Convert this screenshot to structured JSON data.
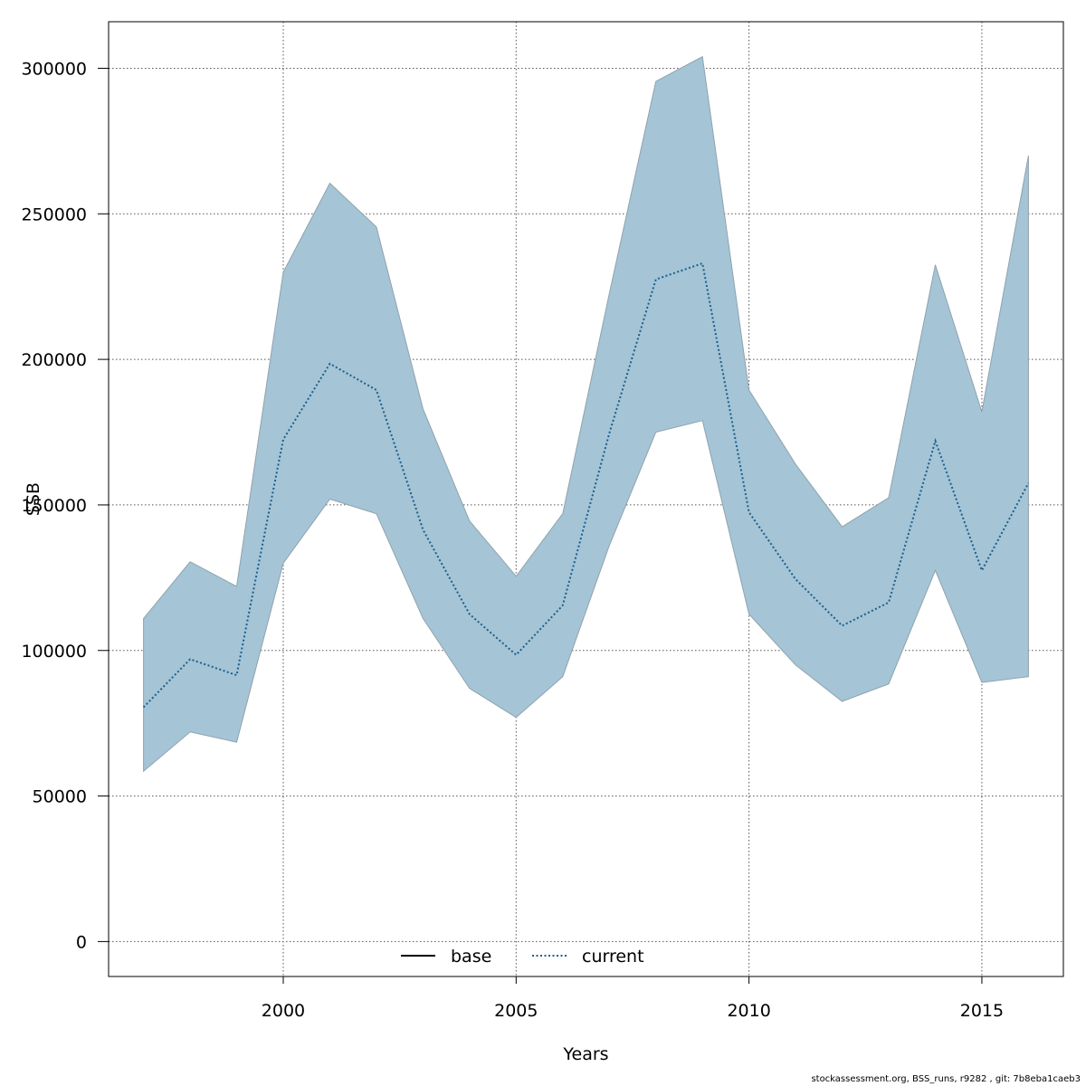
{
  "chart_data": {
    "type": "line",
    "title": "",
    "xlabel": "Years",
    "ylabel": "SSB",
    "xlim": [
      1996.25,
      2016.75
    ],
    "ylim": [
      -12000,
      316000
    ],
    "x_ticks": [
      2000,
      2005,
      2010,
      2015
    ],
    "y_ticks": [
      0,
      50000,
      100000,
      150000,
      200000,
      250000,
      300000
    ],
    "grid": true,
    "legend_position": "bottom-center",
    "x": [
      1997,
      1998,
      1999,
      2000,
      2001,
      2002,
      2003,
      2004,
      2005,
      2006,
      2007,
      2008,
      2009,
      2010,
      2011,
      2012,
      2013,
      2014,
      2015,
      2016
    ],
    "series": [
      {
        "name": "base",
        "style": "solid",
        "color": "#000000",
        "values": [
          80500,
          97000,
          91500,
          172500,
          198500,
          189500,
          141500,
          112500,
          98500,
          115500,
          174500,
          227500,
          233000,
          147500,
          124500,
          108500,
          116500,
          172000,
          127500,
          157500
        ]
      },
      {
        "name": "current",
        "style": "dotted",
        "color": "#1a5f8f",
        "values": [
          80500,
          97000,
          91500,
          172500,
          198500,
          189500,
          141500,
          112500,
          98500,
          115500,
          174500,
          227500,
          233000,
          147500,
          124500,
          108500,
          116500,
          172000,
          127500,
          157500
        ]
      }
    ],
    "band": {
      "color": "#a5c4d5",
      "upper": [
        111000,
        130500,
        122000,
        230000,
        260500,
        245500,
        183000,
        144500,
        125500,
        147000,
        222500,
        295500,
        304000,
        189500,
        164000,
        142500,
        152500,
        232500,
        182000,
        270000
      ],
      "lower": [
        58500,
        72000,
        68500,
        130000,
        152000,
        147000,
        111000,
        87000,
        77000,
        91000,
        136000,
        175000,
        179000,
        112500,
        95000,
        82500,
        88500,
        127500,
        89000,
        91000
      ]
    }
  },
  "legend": {
    "items": [
      "base",
      "current"
    ]
  },
  "footer": {
    "text": "stockassessment.org, BSS_runs, r9282 , git: 7b8eba1caeb3"
  }
}
